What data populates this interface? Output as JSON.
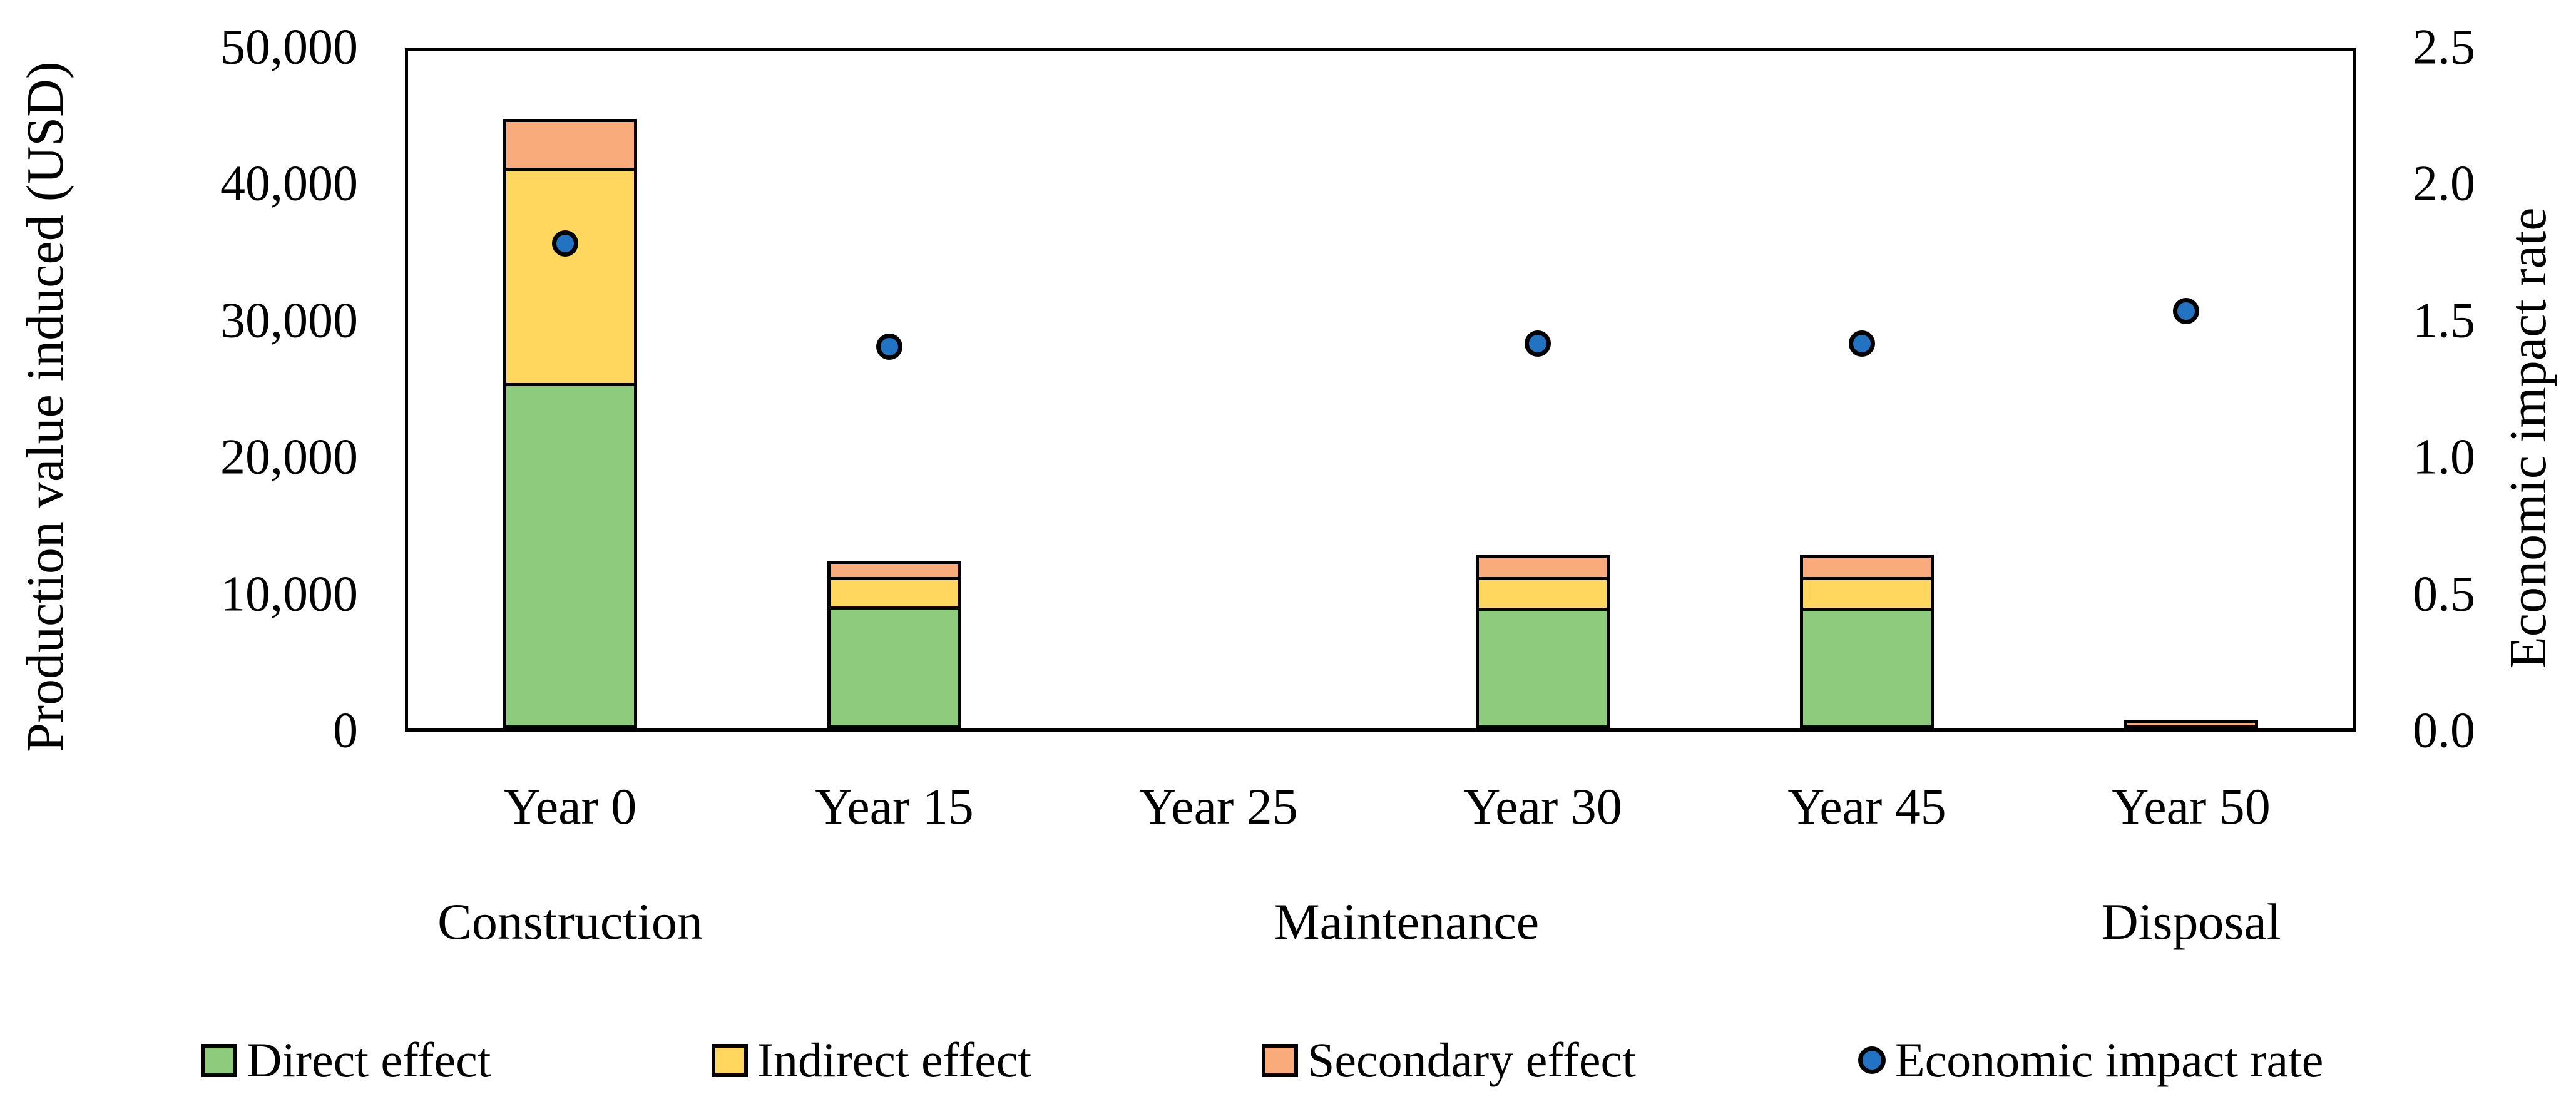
{
  "chart_data": {
    "type": "combo-stacked-bar-scatter",
    "title": "",
    "categories": [
      "Year 0",
      "Year 15",
      "Year 25",
      "Year 30",
      "Year 45",
      "Year 50"
    ],
    "group_labels": [
      {
        "label": "Construction",
        "slot": 0
      },
      {
        "label": "Maintenance",
        "slot": 2.58
      },
      {
        "label": "Disposal",
        "slot": 5
      }
    ],
    "series": [
      {
        "name": "Direct effect",
        "type": "bar",
        "color": "#8FCB7D",
        "values": [
          25500,
          9000,
          0,
          8900,
          8900,
          0
        ]
      },
      {
        "name": "Indirect effect",
        "type": "bar",
        "color": "#FFD75E",
        "values": [
          15900,
          2200,
          0,
          2300,
          2300,
          0
        ]
      },
      {
        "name": "Secondary effect",
        "type": "bar",
        "color": "#F9AB7C",
        "values": [
          3600,
          1200,
          0,
          1650,
          1650,
          600
        ]
      }
    ],
    "scatter_series": {
      "name": "Economic impact rate",
      "color": "#2273C2",
      "values": [
        1.79,
        1.41,
        null,
        1.42,
        1.42,
        1.54
      ]
    },
    "y_left": {
      "title": "Production value induced (USD)",
      "min": 0,
      "max": 50000,
      "step": 10000
    },
    "y_right": {
      "title": "Economic impact rate",
      "min": 0,
      "max": 2.5,
      "step": 0.5
    },
    "bar_border_color": "#000000",
    "legend_position": "bottom",
    "grid": false
  }
}
